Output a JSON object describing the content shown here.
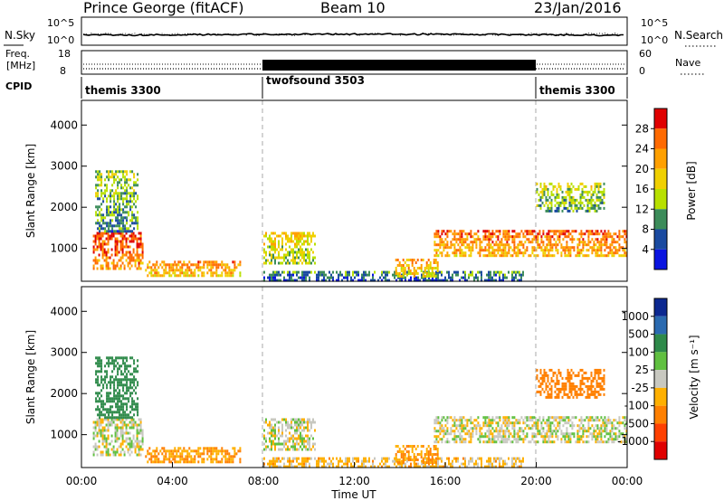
{
  "header": {
    "station": "Prince George (fitACF)",
    "beam": "Beam 10",
    "date": "23/Jan/2016"
  },
  "noise_panel": {
    "left_label": "N.Sky",
    "right_label": "N.Search",
    "left_ticks": [
      "10^5",
      "10^0"
    ],
    "right_ticks": [
      "10^5",
      "10^0"
    ]
  },
  "freq_panel": {
    "left_label_line1": "Freq.",
    "left_label_line2": "[MHz]",
    "right_label": "Nave",
    "left_ticks": [
      "18",
      "8"
    ],
    "right_ticks": [
      "60",
      "0"
    ]
  },
  "cpid_panel": {
    "label": "CPID",
    "segments": [
      {
        "name": "themis 3300",
        "start_hour": 0,
        "end_hour": 8
      },
      {
        "name": "twofsound 3503",
        "start_hour": 8,
        "end_hour": 20
      },
      {
        "name": "themis 3300",
        "start_hour": 20,
        "end_hour": 24
      }
    ]
  },
  "power_colorbar": {
    "title": "Power [dB]",
    "ticks": [
      "28",
      "24",
      "20",
      "16",
      "12",
      "8",
      "4"
    ],
    "colors": [
      "#e00000",
      "#ff6a00",
      "#ffa000",
      "#f0d000",
      "#b8e000",
      "#3c8c5a",
      "#1a4aa0",
      "#0a14e0"
    ]
  },
  "velocity_colorbar": {
    "title": "Velocity [m s⁻¹]",
    "ticks": [
      "1000",
      "500",
      "100",
      "25",
      "-25",
      "-100",
      "-500",
      "-1000"
    ],
    "colors": [
      "#0c2890",
      "#2a6ab0",
      "#2e8a4a",
      "#60c040",
      "#c8c8c0",
      "#ffb000",
      "#ff8000",
      "#ff4000",
      "#e00000"
    ]
  },
  "axes": {
    "y_label": "Slant Range [km]",
    "y_ticks": [
      "4000",
      "3000",
      "2000",
      "1000"
    ],
    "x_label": "Time UT",
    "x_ticks": [
      "00:00",
      "04:00",
      "08:00",
      "12:00",
      "16:00",
      "20:00",
      "00:00"
    ]
  },
  "chart_data": {
    "type": "heatmap",
    "title": "Prince George (fitACF) Beam 10 23/Jan/2016",
    "xlabel": "Time UT",
    "ylabel": "Slant Range [km]",
    "xlim_hours": [
      0,
      24
    ],
    "ylim_km": [
      200,
      4600
    ],
    "mode_boundaries_hours": [
      8,
      20
    ],
    "scatter_regions": [
      {
        "t_start": 0.5,
        "t_end": 2.7,
        "r_start": 500,
        "r_end": 1400,
        "power_db": 26,
        "velocity": 0
      },
      {
        "t_start": 0.6,
        "t_end": 2.5,
        "r_start": 1400,
        "r_end": 2900,
        "power_db": 12,
        "velocity": 200
      },
      {
        "t_start": 2.8,
        "t_end": 7.0,
        "r_start": 300,
        "r_end": 700,
        "power_db": 22,
        "velocity": -100
      },
      {
        "t_start": 8.0,
        "t_end": 10.3,
        "r_start": 600,
        "r_end": 1400,
        "power_db": 17,
        "velocity": 0
      },
      {
        "t_start": 8.0,
        "t_end": 19.5,
        "r_start": 200,
        "r_end": 450,
        "power_db": 8,
        "velocity": -50
      },
      {
        "t_start": 13.8,
        "t_end": 15.7,
        "r_start": 300,
        "r_end": 750,
        "power_db": 20,
        "velocity": -100
      },
      {
        "t_start": 15.5,
        "t_end": 24.0,
        "r_start": 800,
        "r_end": 1450,
        "power_db": 24,
        "velocity": 0
      },
      {
        "t_start": 20.0,
        "t_end": 23.0,
        "r_start": 1900,
        "r_end": 2600,
        "power_db": 14,
        "velocity": -300
      }
    ]
  }
}
